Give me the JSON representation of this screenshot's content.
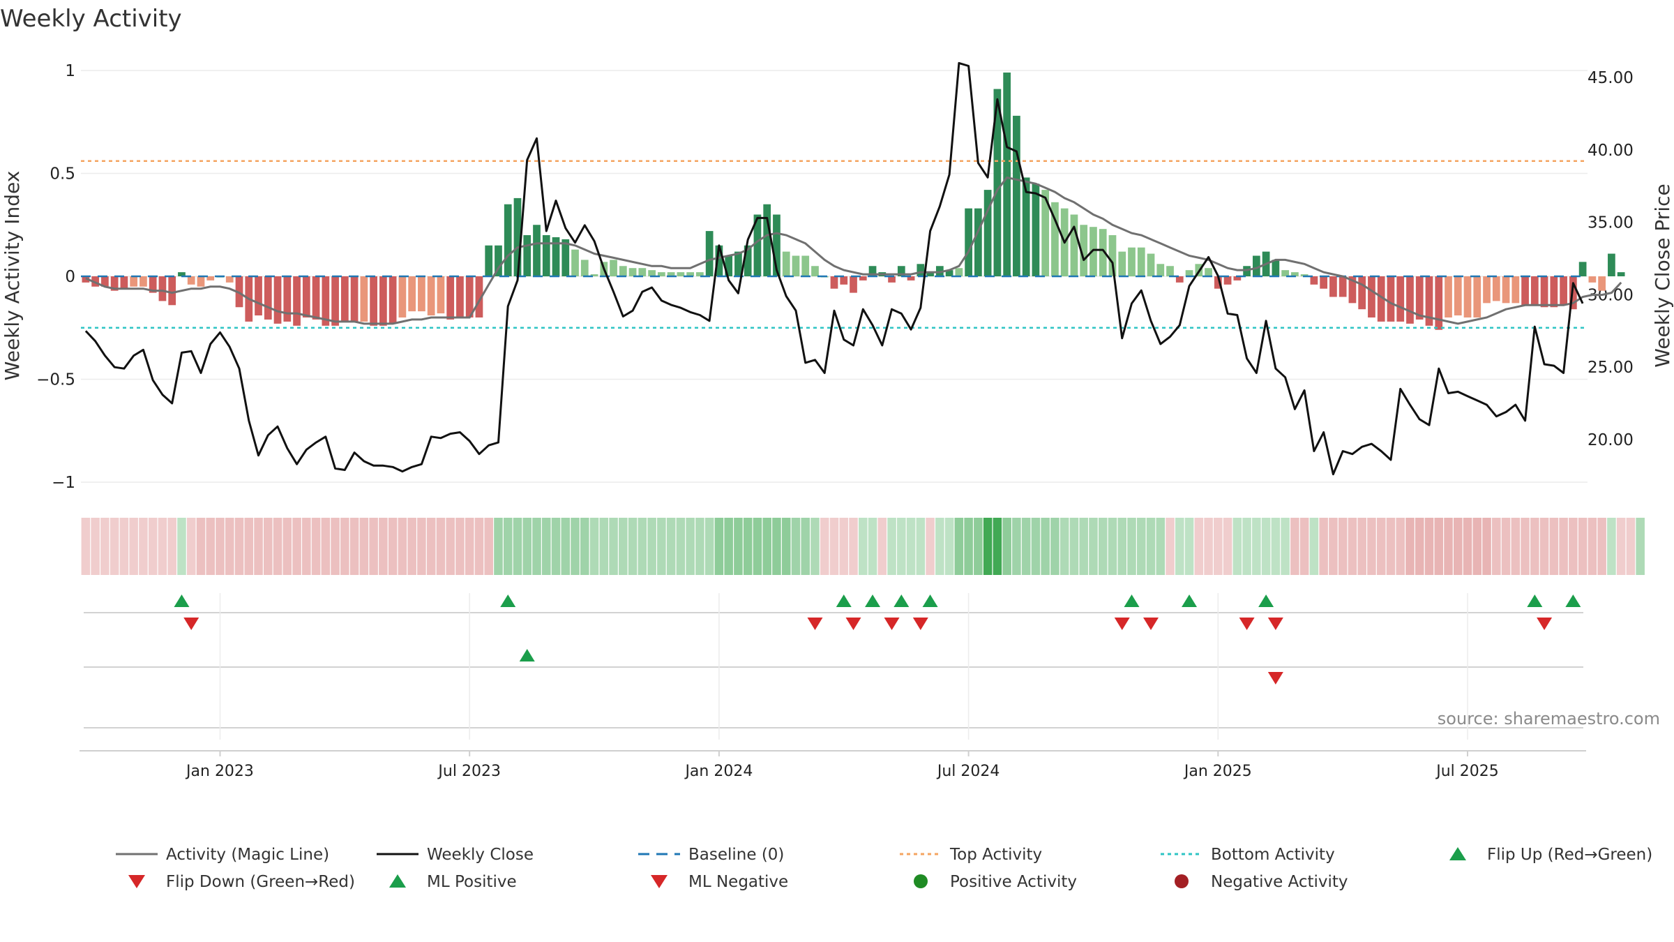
{
  "title": "Weekly Activity",
  "source": "source: sharemaestro.com",
  "colors": {
    "pos_dark": "#2e8b57",
    "pos_light": "#8cc68c",
    "neg_dark": "#cd5c5c",
    "neg_light": "#e9967a",
    "magic_line": "#707070",
    "close_line": "#111111",
    "baseline": "#1f77b4",
    "top_line": "#f4a460",
    "bottom_line": "#2ec4c4",
    "flip_up": "#1b9e4b",
    "flip_down": "#d62728",
    "pos_dot": "#1f8b24",
    "neg_dot": "#a31f24"
  },
  "chart_data": {
    "type": "bar",
    "title": "Weekly Activity",
    "ylabel": "Weekly Activity Index",
    "y2label": "Weekly Close Price",
    "ylim": [
      -1.1,
      1.1
    ],
    "y2lim": [
      15.9,
      46.5
    ],
    "yticks": [
      1,
      0.5,
      0,
      -0.5,
      -1
    ],
    "ytick_labels": [
      "1",
      "0.5",
      "0",
      "−0.5",
      "−1"
    ],
    "y2ticks": [
      45,
      40,
      35,
      30,
      25,
      20
    ],
    "y2tick_labels": [
      "45.00",
      "40.00",
      "35.00",
      "30.00",
      "25.00",
      "20.00"
    ],
    "x_domain_weeks": [
      -0.5,
      156.5
    ],
    "xticks": [
      {
        "label": "Jan 2023",
        "week": 14
      },
      {
        "label": "Jul 2023",
        "week": 40
      },
      {
        "label": "Jan 2024",
        "week": 66
      },
      {
        "label": "Jul 2024",
        "week": 92
      },
      {
        "label": "Jan 2025",
        "week": 118
      },
      {
        "label": "Jul 2025",
        "week": 144
      }
    ],
    "top_activity": 0.56,
    "bottom_activity": -0.25,
    "baseline": 0,
    "activity": [
      -0.03,
      -0.05,
      -0.05,
      -0.07,
      -0.06,
      -0.05,
      -0.05,
      -0.08,
      -0.12,
      -0.14,
      0.02,
      -0.04,
      -0.05,
      -0.02,
      0,
      -0.03,
      -0.15,
      -0.22,
      -0.19,
      -0.21,
      -0.23,
      -0.22,
      -0.24,
      -0.2,
      -0.21,
      -0.24,
      -0.24,
      -0.22,
      -0.22,
      -0.22,
      -0.24,
      -0.24,
      -0.23,
      -0.2,
      -0.17,
      -0.17,
      -0.19,
      -0.18,
      -0.21,
      -0.2,
      -0.2,
      -0.2,
      0.15,
      0.15,
      0.35,
      0.38,
      0.2,
      0.25,
      0.2,
      0.19,
      0.18,
      0.13,
      0.08,
      0.01,
      0.07,
      0.08,
      0.05,
      0.04,
      0.04,
      0.03,
      0.02,
      0.02,
      0.02,
      0.02,
      0.02,
      0.22,
      0.15,
      0.1,
      0.12,
      0.15,
      0.3,
      0.35,
      0.3,
      0.12,
      0.1,
      0.1,
      0.05,
      0,
      -0.06,
      -0.04,
      -0.08,
      -0.02,
      0.05,
      0.02,
      -0.03,
      0.05,
      -0.02,
      0.06,
      0.02,
      0.05,
      0.03,
      0.04,
      0.33,
      0.33,
      0.42,
      0.91,
      0.99,
      0.78,
      0.48,
      0.45,
      0.42,
      0.36,
      0.33,
      0.3,
      0.25,
      0.24,
      0.23,
      0.2,
      0.12,
      0.14,
      0.14,
      0.11,
      0.06,
      0.05,
      -0.03,
      0.03,
      0.06,
      0.04,
      -0.06,
      -0.04,
      -0.02,
      0.05,
      0.1,
      0.12,
      0.08,
      0.03,
      0.02,
      0.01,
      -0.04,
      -0.06,
      -0.1,
      -0.1,
      -0.13,
      -0.16,
      -0.2,
      -0.22,
      -0.22,
      -0.22,
      -0.23,
      -0.21,
      -0.24,
      -0.26,
      -0.2,
      -0.19,
      -0.2,
      -0.2,
      -0.13,
      -0.12,
      -0.13,
      -0.13,
      -0.14,
      -0.14,
      -0.15,
      -0.15,
      -0.14,
      -0.16,
      0.07,
      -0.03,
      -0.07,
      0.11,
      0.02
    ],
    "magic_line": [
      -0.01,
      -0.03,
      -0.05,
      -0.06,
      -0.06,
      -0.06,
      -0.06,
      -0.07,
      -0.07,
      -0.08,
      -0.07,
      -0.06,
      -0.06,
      -0.05,
      -0.05,
      -0.06,
      -0.08,
      -0.11,
      -0.13,
      -0.15,
      -0.17,
      -0.18,
      -0.18,
      -0.19,
      -0.2,
      -0.21,
      -0.22,
      -0.22,
      -0.22,
      -0.23,
      -0.23,
      -0.23,
      -0.23,
      -0.22,
      -0.21,
      -0.21,
      -0.2,
      -0.2,
      -0.2,
      -0.2,
      -0.2,
      -0.12,
      -0.04,
      0.04,
      0.1,
      0.14,
      0.15,
      0.16,
      0.16,
      0.16,
      0.16,
      0.15,
      0.13,
      0.11,
      0.1,
      0.09,
      0.08,
      0.07,
      0.06,
      0.05,
      0.05,
      0.04,
      0.04,
      0.04,
      0.06,
      0.08,
      0.09,
      0.1,
      0.11,
      0.13,
      0.17,
      0.2,
      0.21,
      0.2,
      0.18,
      0.16,
      0.12,
      0.08,
      0.05,
      0.03,
      0.02,
      0.01,
      0.01,
      0.01,
      0.01,
      0.01,
      0.01,
      0.02,
      0.02,
      0.02,
      0.03,
      0.05,
      0.12,
      0.22,
      0.32,
      0.42,
      0.48,
      0.47,
      0.46,
      0.45,
      0.43,
      0.41,
      0.38,
      0.36,
      0.33,
      0.3,
      0.28,
      0.25,
      0.23,
      0.21,
      0.2,
      0.18,
      0.16,
      0.14,
      0.12,
      0.1,
      0.09,
      0.08,
      0.06,
      0.04,
      0.03,
      0.03,
      0.04,
      0.06,
      0.08,
      0.08,
      0.07,
      0.06,
      0.04,
      0.02,
      0.01,
      0,
      -0.02,
      -0.04,
      -0.07,
      -0.1,
      -0.13,
      -0.15,
      -0.17,
      -0.19,
      -0.2,
      -0.21,
      -0.22,
      -0.23,
      -0.22,
      -0.21,
      -0.2,
      -0.18,
      -0.16,
      -0.15,
      -0.14,
      -0.14,
      -0.14,
      -0.14,
      -0.14,
      -0.13,
      -0.1,
      -0.09,
      -0.09,
      -0.08,
      -0.03
    ],
    "weekly_close": [
      27.5,
      26.8,
      25.8,
      25.0,
      24.9,
      25.8,
      26.2,
      24.1,
      23.1,
      22.5,
      26.0,
      26.1,
      24.6,
      26.6,
      27.4,
      26.4,
      24.9,
      21.3,
      18.9,
      20.3,
      20.9,
      19.4,
      18.3,
      19.3,
      19.8,
      20.2,
      18.0,
      17.9,
      19.1,
      18.5,
      18.2,
      18.2,
      18.1,
      17.8,
      18.1,
      18.3,
      20.2,
      20.1,
      20.4,
      20.5,
      19.9,
      19.0,
      19.6,
      19.8,
      29.2,
      31.0,
      39.3,
      40.8,
      34.4,
      36.5,
      34.6,
      33.6,
      34.8,
      33.7,
      31.8,
      30.2,
      28.5,
      28.9,
      30.2,
      30.5,
      29.6,
      29.3,
      29.1,
      28.8,
      28.6,
      28.2,
      33.4,
      31.0,
      30.1,
      33.8,
      35.3,
      35.3,
      31.7,
      29.9,
      28.9,
      25.3,
      25.5,
      24.6,
      28.9,
      26.9,
      26.5,
      29.0,
      27.9,
      26.5,
      29.0,
      28.7,
      27.6,
      29.1,
      34.4,
      36.1,
      38.3,
      46.0,
      45.8,
      39.1,
      38.1,
      43.5,
      40.2,
      39.9,
      37.1,
      37.0,
      36.7,
      35.2,
      33.6,
      34.7,
      32.4,
      33.1,
      33.1,
      32.2,
      27.0,
      29.4,
      30.3,
      28.2,
      26.6,
      27.1,
      27.9,
      30.6,
      31.6,
      32.6,
      31.3,
      28.7,
      28.6,
      25.6,
      24.6,
      28.2,
      24.9,
      24.3,
      22.1,
      23.4,
      19.2,
      20.5,
      17.6,
      19.2,
      19.0,
      19.5,
      19.7,
      19.2,
      18.6,
      23.5,
      22.4,
      21.4,
      21.0,
      24.9,
      23.2,
      23.3,
      23.0,
      22.7,
      22.4,
      21.6,
      21.9,
      22.4,
      21.3,
      27.8,
      25.2,
      25.1,
      24.6,
      30.8,
      29.4
    ],
    "strength_strip_values": [
      -0.2,
      -0.2,
      -0.2,
      -0.2,
      -0.2,
      -0.2,
      -0.2,
      -0.2,
      -0.2,
      -0.2,
      0.2,
      -0.2,
      -0.3,
      -0.3,
      -0.3,
      -0.3,
      -0.3,
      -0.3,
      -0.3,
      -0.3,
      -0.3,
      -0.3,
      -0.3,
      -0.3,
      -0.3,
      -0.3,
      -0.3,
      -0.3,
      -0.3,
      -0.3,
      -0.3,
      -0.3,
      -0.3,
      -0.3,
      -0.3,
      -0.3,
      -0.3,
      -0.3,
      -0.3,
      -0.3,
      -0.3,
      -0.3,
      -0.3,
      0.4,
      0.4,
      0.4,
      0.4,
      0.4,
      0.4,
      0.4,
      0.4,
      0.4,
      0.4,
      0.3,
      0.3,
      0.3,
      0.3,
      0.3,
      0.3,
      0.3,
      0.3,
      0.3,
      0.3,
      0.3,
      0.3,
      0.3,
      0.5,
      0.5,
      0.5,
      0.5,
      0.5,
      0.5,
      0.5,
      0.5,
      0.4,
      0.4,
      0.3,
      -0.2,
      -0.2,
      -0.2,
      -0.2,
      0.2,
      0.2,
      -0.2,
      0.2,
      0.2,
      0.2,
      0.2,
      -0.2,
      0.2,
      0.2,
      0.5,
      0.5,
      0.5,
      1,
      1,
      0.5,
      0.4,
      0.4,
      0.4,
      0.4,
      0.4,
      0.3,
      0.3,
      0.3,
      0.3,
      0.3,
      0.3,
      0.3,
      0.3,
      0.3,
      0.3,
      0.3,
      -0.2,
      0.2,
      0.2,
      -0.2,
      -0.2,
      -0.2,
      -0.2,
      0.2,
      0.2,
      0.2,
      0.2,
      0.2,
      0.2,
      -0.3,
      -0.3,
      0.2,
      -0.3,
      -0.3,
      -0.3,
      -0.3,
      -0.3,
      -0.3,
      -0.3,
      -0.3,
      -0.3,
      -0.4,
      -0.4,
      -0.4,
      -0.4,
      -0.4,
      -0.4,
      -0.4,
      -0.4,
      -0.4,
      -0.3,
      -0.3,
      -0.3,
      -0.3,
      -0.3,
      -0.3,
      -0.3,
      -0.3,
      -0.3,
      -0.3,
      -0.3,
      -0.3,
      0.2,
      -0.2,
      -0.2,
      0.3
    ],
    "flip_up_weeks": [
      10,
      44,
      79,
      82,
      85,
      88,
      109,
      115,
      123,
      151,
      155
    ],
    "flip_down_weeks": [
      11,
      76,
      80,
      84,
      87,
      108,
      111,
      121,
      124,
      152
    ],
    "ml_positive_weeks": [
      46
    ],
    "ml_negative_weeks": [
      124
    ],
    "legend": [
      {
        "label": "Activity (Magic Line)",
        "kind": "line-gray"
      },
      {
        "label": "Weekly Close",
        "kind": "line-black"
      },
      {
        "label": "Baseline (0)",
        "kind": "dash-blue"
      },
      {
        "label": "Top Activity",
        "kind": "dot-orange"
      },
      {
        "label": "Bottom Activity",
        "kind": "dot-cyan"
      },
      {
        "label": "Flip Up (Red→Green)",
        "kind": "tri-up"
      },
      {
        "label": "Flip Down (Green→Red)",
        "kind": "tri-down"
      },
      {
        "label": "ML Positive",
        "kind": "tri-up"
      },
      {
        "label": "ML Negative",
        "kind": "tri-down"
      },
      {
        "label": "Positive Activity",
        "kind": "dot-green"
      },
      {
        "label": "Negative Activity",
        "kind": "dot-red"
      }
    ]
  }
}
